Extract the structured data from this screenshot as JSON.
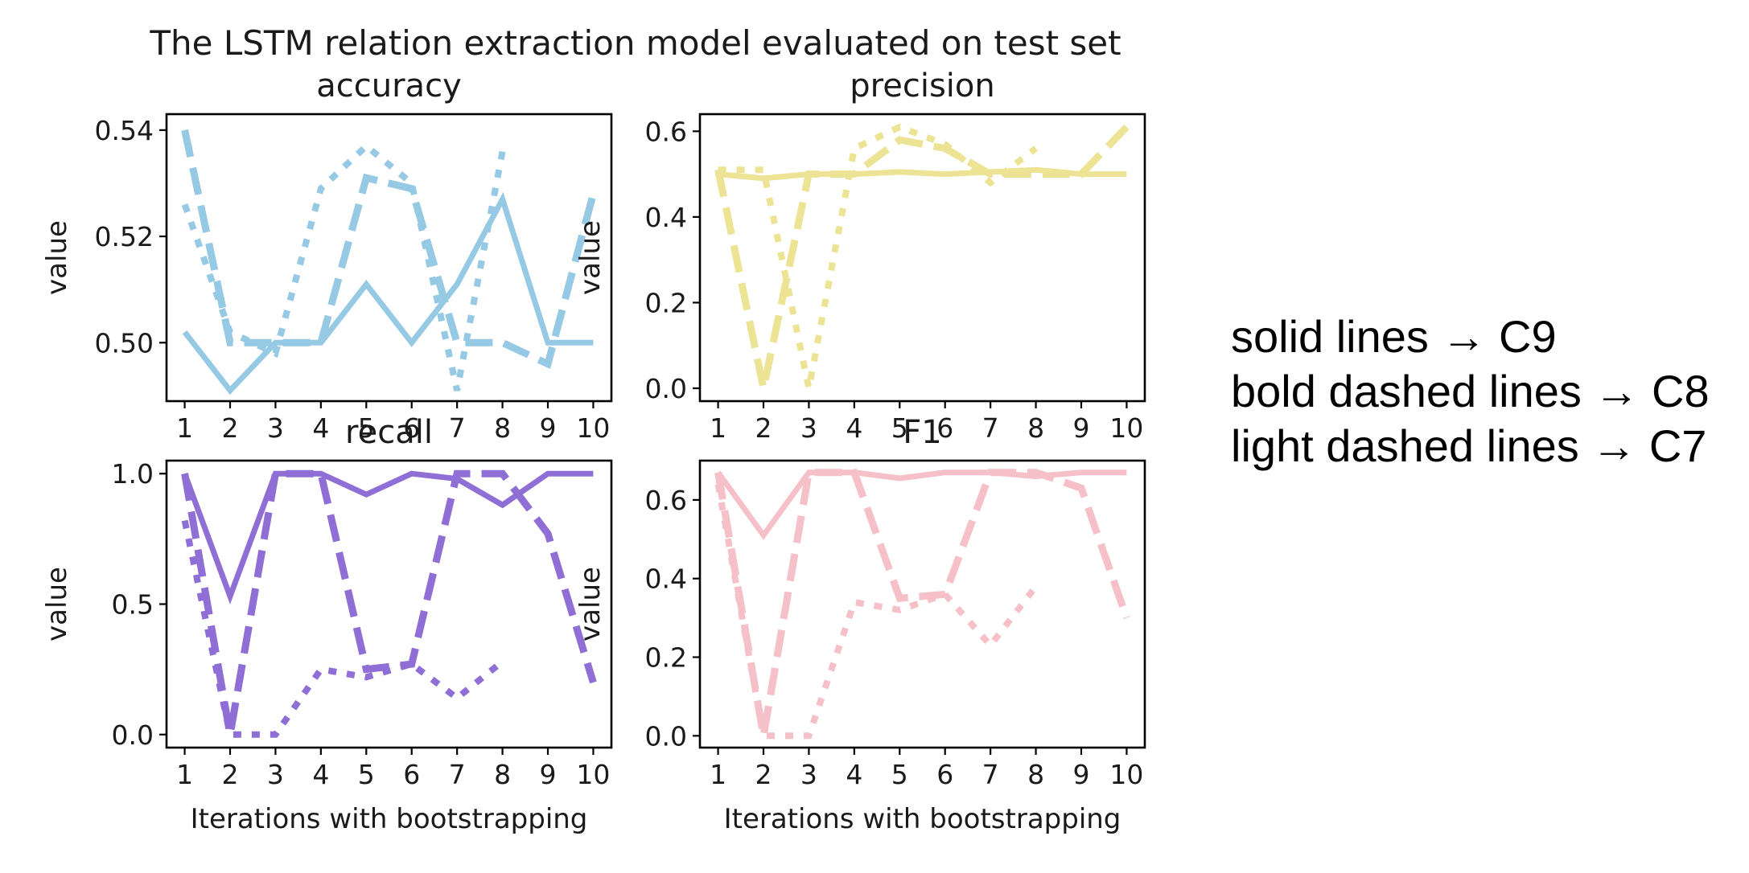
{
  "suptitle": "The LSTM relation extraction model evaluated on test set",
  "legend": [
    "solid lines → C9",
    "bold dashed lines → C8",
    "light dashed lines → C7"
  ],
  "chart_data": [
    {
      "type": "line",
      "title": "accuracy",
      "xlabel": "",
      "ylabel": "value",
      "x": [
        1,
        2,
        3,
        4,
        5,
        6,
        7,
        8,
        9,
        10
      ],
      "xlim": [
        0.6,
        10.4
      ],
      "ylim": [
        0.489,
        0.543
      ],
      "yticks": [
        0.5,
        0.52,
        0.54
      ],
      "ytick_labels": [
        "0.50",
        "0.52",
        "0.54"
      ],
      "color": "#95c9e4",
      "series": [
        {
          "style": "solid",
          "values": [
            0.502,
            0.491,
            0.5,
            0.5,
            0.511,
            0.5,
            0.511,
            0.527,
            0.5,
            0.5
          ]
        },
        {
          "style": "bold dashed",
          "values": [
            0.54,
            0.5,
            0.5,
            0.5,
            0.531,
            0.529,
            0.5,
            0.5,
            0.496,
            0.528
          ]
        },
        {
          "style": "light dashed",
          "values": [
            0.526,
            0.502,
            0.498,
            0.529,
            0.537,
            0.53,
            0.491,
            0.536,
            null,
            null
          ]
        }
      ]
    },
    {
      "type": "line",
      "title": "precision",
      "xlabel": "",
      "ylabel": "value",
      "x": [
        1,
        2,
        3,
        4,
        5,
        6,
        7,
        8,
        9,
        10
      ],
      "xlim": [
        0.6,
        10.4
      ],
      "ylim": [
        -0.03,
        0.64
      ],
      "yticks": [
        0.0,
        0.2,
        0.4,
        0.6
      ],
      "ytick_labels": [
        "0.0",
        "0.2",
        "0.4",
        "0.6"
      ],
      "color": "#ede395",
      "series": [
        {
          "style": "solid",
          "values": [
            0.5,
            0.49,
            0.5,
            0.5,
            0.505,
            0.5,
            0.505,
            0.51,
            0.5,
            0.5
          ]
        },
        {
          "style": "bold dashed",
          "values": [
            0.51,
            0.0,
            0.5,
            0.5,
            0.58,
            0.56,
            0.5,
            0.5,
            0.5,
            0.61
          ]
        },
        {
          "style": "light dashed",
          "values": [
            0.51,
            0.51,
            0.0,
            0.56,
            0.61,
            0.57,
            0.48,
            0.56,
            null,
            null
          ]
        }
      ]
    },
    {
      "type": "line",
      "title": "recall",
      "xlabel": "Iterations with bootstrapping",
      "ylabel": "value",
      "x": [
        1,
        2,
        3,
        4,
        5,
        6,
        7,
        8,
        9,
        10
      ],
      "xlim": [
        0.6,
        10.4
      ],
      "ylim": [
        -0.05,
        1.05
      ],
      "yticks": [
        0.0,
        0.5,
        1.0
      ],
      "ytick_labels": [
        "0.0",
        "0.5",
        "1.0"
      ],
      "color": "#8f6ed6",
      "series": [
        {
          "style": "solid",
          "values": [
            1.0,
            0.53,
            1.0,
            1.0,
            0.92,
            1.0,
            0.98,
            0.88,
            1.0,
            1.0
          ]
        },
        {
          "style": "bold dashed",
          "values": [
            1.0,
            0.0,
            1.0,
            1.0,
            0.25,
            0.27,
            1.0,
            1.0,
            0.77,
            0.2
          ]
        },
        {
          "style": "light dashed",
          "values": [
            0.82,
            0.0,
            0.0,
            0.25,
            0.22,
            0.27,
            0.14,
            0.28,
            null,
            null
          ]
        }
      ]
    },
    {
      "type": "line",
      "title": "F1",
      "xlabel": "Iterations with bootstrapping",
      "ylabel": "value",
      "x": [
        1,
        2,
        3,
        4,
        5,
        6,
        7,
        8,
        9,
        10
      ],
      "xlim": [
        0.6,
        10.4
      ],
      "ylim": [
        -0.03,
        0.7
      ],
      "yticks": [
        0.0,
        0.2,
        0.4,
        0.6
      ],
      "ytick_labels": [
        "0.0",
        "0.2",
        "0.4",
        "0.6"
      ],
      "color": "#f5c0c8",
      "series": [
        {
          "style": "solid",
          "values": [
            0.67,
            0.51,
            0.67,
            0.67,
            0.655,
            0.67,
            0.67,
            0.66,
            0.67,
            0.67
          ]
        },
        {
          "style": "bold dashed",
          "values": [
            0.67,
            0.0,
            0.67,
            0.67,
            0.35,
            0.36,
            0.67,
            0.67,
            0.63,
            0.3
          ]
        },
        {
          "style": "light dashed",
          "values": [
            0.64,
            0.0,
            0.0,
            0.34,
            0.32,
            0.36,
            0.23,
            0.38,
            null,
            null
          ]
        }
      ]
    }
  ]
}
